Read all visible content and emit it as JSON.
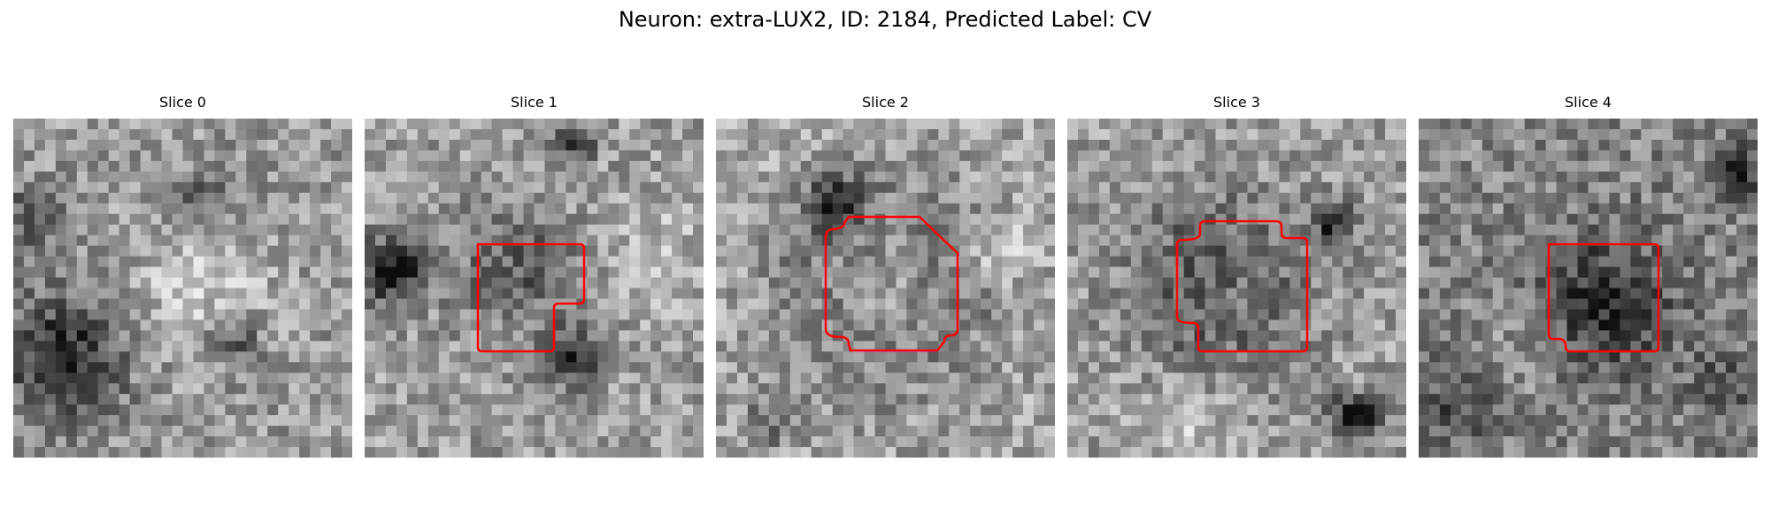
{
  "figure": {
    "title": "Neuron: extra-LUX2, ID: 2184, Predicted Label: CV",
    "outline_color": "#ff0000"
  },
  "panels": [
    {
      "title": "Slice 0",
      "seed": 11,
      "brightness": 0.6,
      "has_outline": false
    },
    {
      "title": "Slice 1",
      "seed": 23,
      "brightness": 0.62,
      "has_outline": true
    },
    {
      "title": "Slice 2",
      "seed": 37,
      "brightness": 0.66,
      "has_outline": true
    },
    {
      "title": "Slice 3",
      "seed": 51,
      "brightness": 0.62,
      "has_outline": true
    },
    {
      "title": "Slice 4",
      "seed": 67,
      "brightness": 0.52,
      "has_outline": true
    }
  ]
}
